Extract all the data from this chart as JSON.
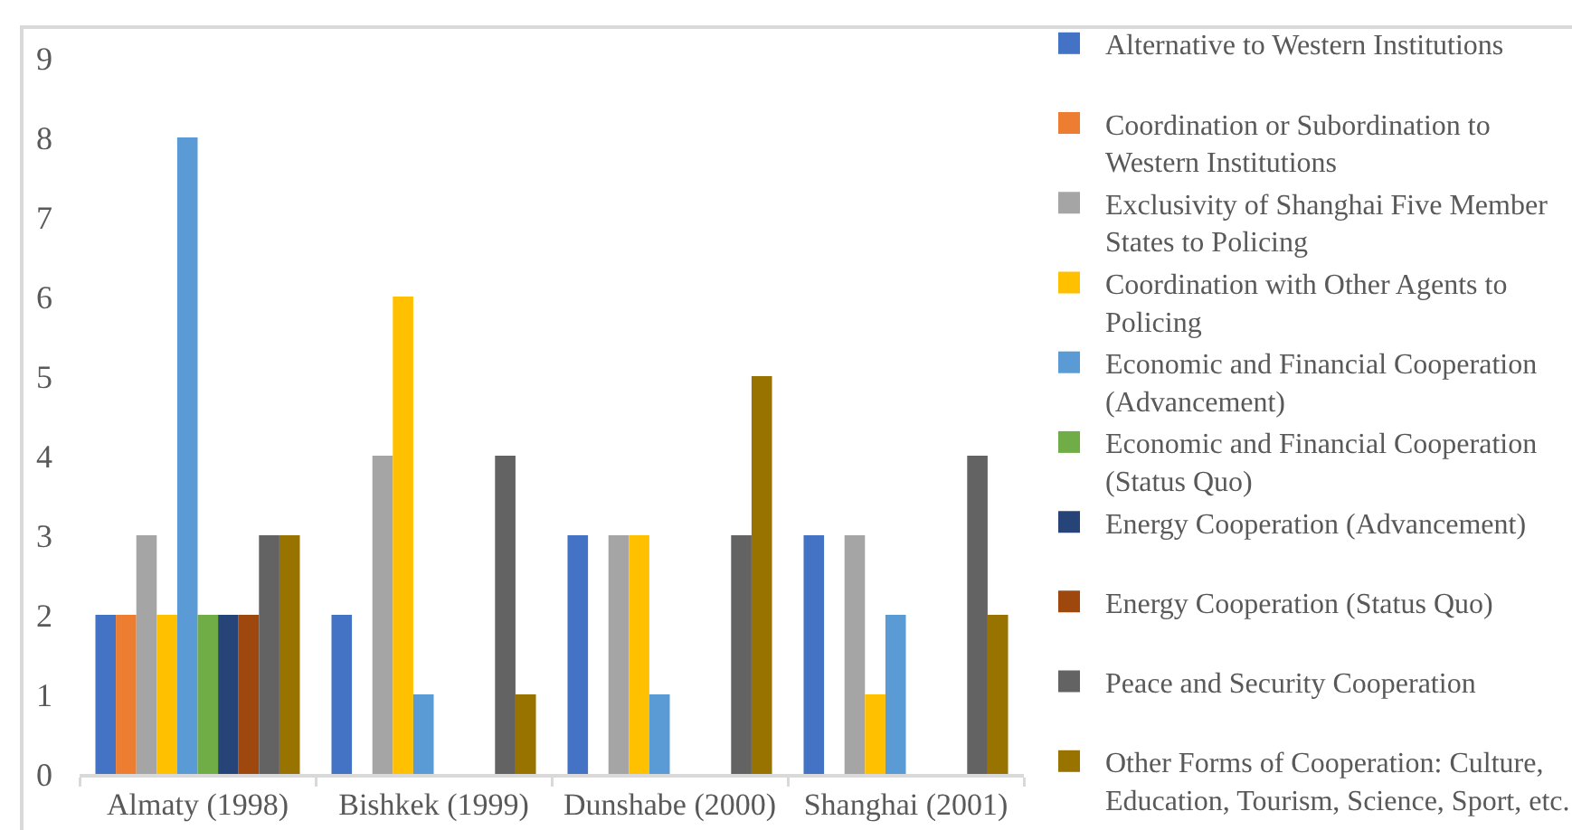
{
  "chart_data": {
    "type": "bar",
    "categories": [
      "Almaty (1998)",
      "Bishkek (1999)",
      "Dunshabe (2000)",
      "Shanghai (2001)"
    ],
    "series": [
      {
        "name": "Alternative to Western Institutions",
        "color": "#4472c4",
        "values": [
          2,
          2,
          3,
          3
        ]
      },
      {
        "name": "Coordination or Subordination to Western Institutions",
        "color": "#ed7d31",
        "values": [
          2,
          null,
          null,
          null
        ]
      },
      {
        "name": "Exclusivity of Shanghai Five Member States to Policing",
        "color": "#a5a5a5",
        "values": [
          3,
          4,
          3,
          3
        ]
      },
      {
        "name": "Coordination with Other Agents to Policing",
        "color": "#ffc000",
        "values": [
          2,
          6,
          3,
          1
        ]
      },
      {
        "name": "Economic and Financial Cooperation (Advancement)",
        "color": "#5b9bd5",
        "values": [
          8,
          1,
          1,
          2
        ]
      },
      {
        "name": "Economic and Financial Cooperation (Status Quo)",
        "color": "#70ad47",
        "values": [
          2,
          null,
          null,
          null
        ]
      },
      {
        "name": "Energy Cooperation (Advancement)",
        "color": "#264478",
        "values": [
          2,
          null,
          null,
          null
        ]
      },
      {
        "name": "Energy Cooperation (Status Quo)",
        "color": "#9e480e",
        "values": [
          2,
          null,
          null,
          null
        ]
      },
      {
        "name": "Peace and Security Cooperation",
        "color": "#636363",
        "values": [
          3,
          4,
          3,
          4
        ]
      },
      {
        "name": "Other Forms of Cooperation: Culture, Education, Tourism, Science, Sport, etc.",
        "color": "#997300",
        "values": [
          3,
          1,
          5,
          2
        ]
      }
    ],
    "ylim": [
      0,
      9
    ],
    "yticks": [
      0,
      1,
      2,
      3,
      4,
      5,
      6,
      7,
      8,
      9
    ],
    "grid": false,
    "legend": "right"
  }
}
